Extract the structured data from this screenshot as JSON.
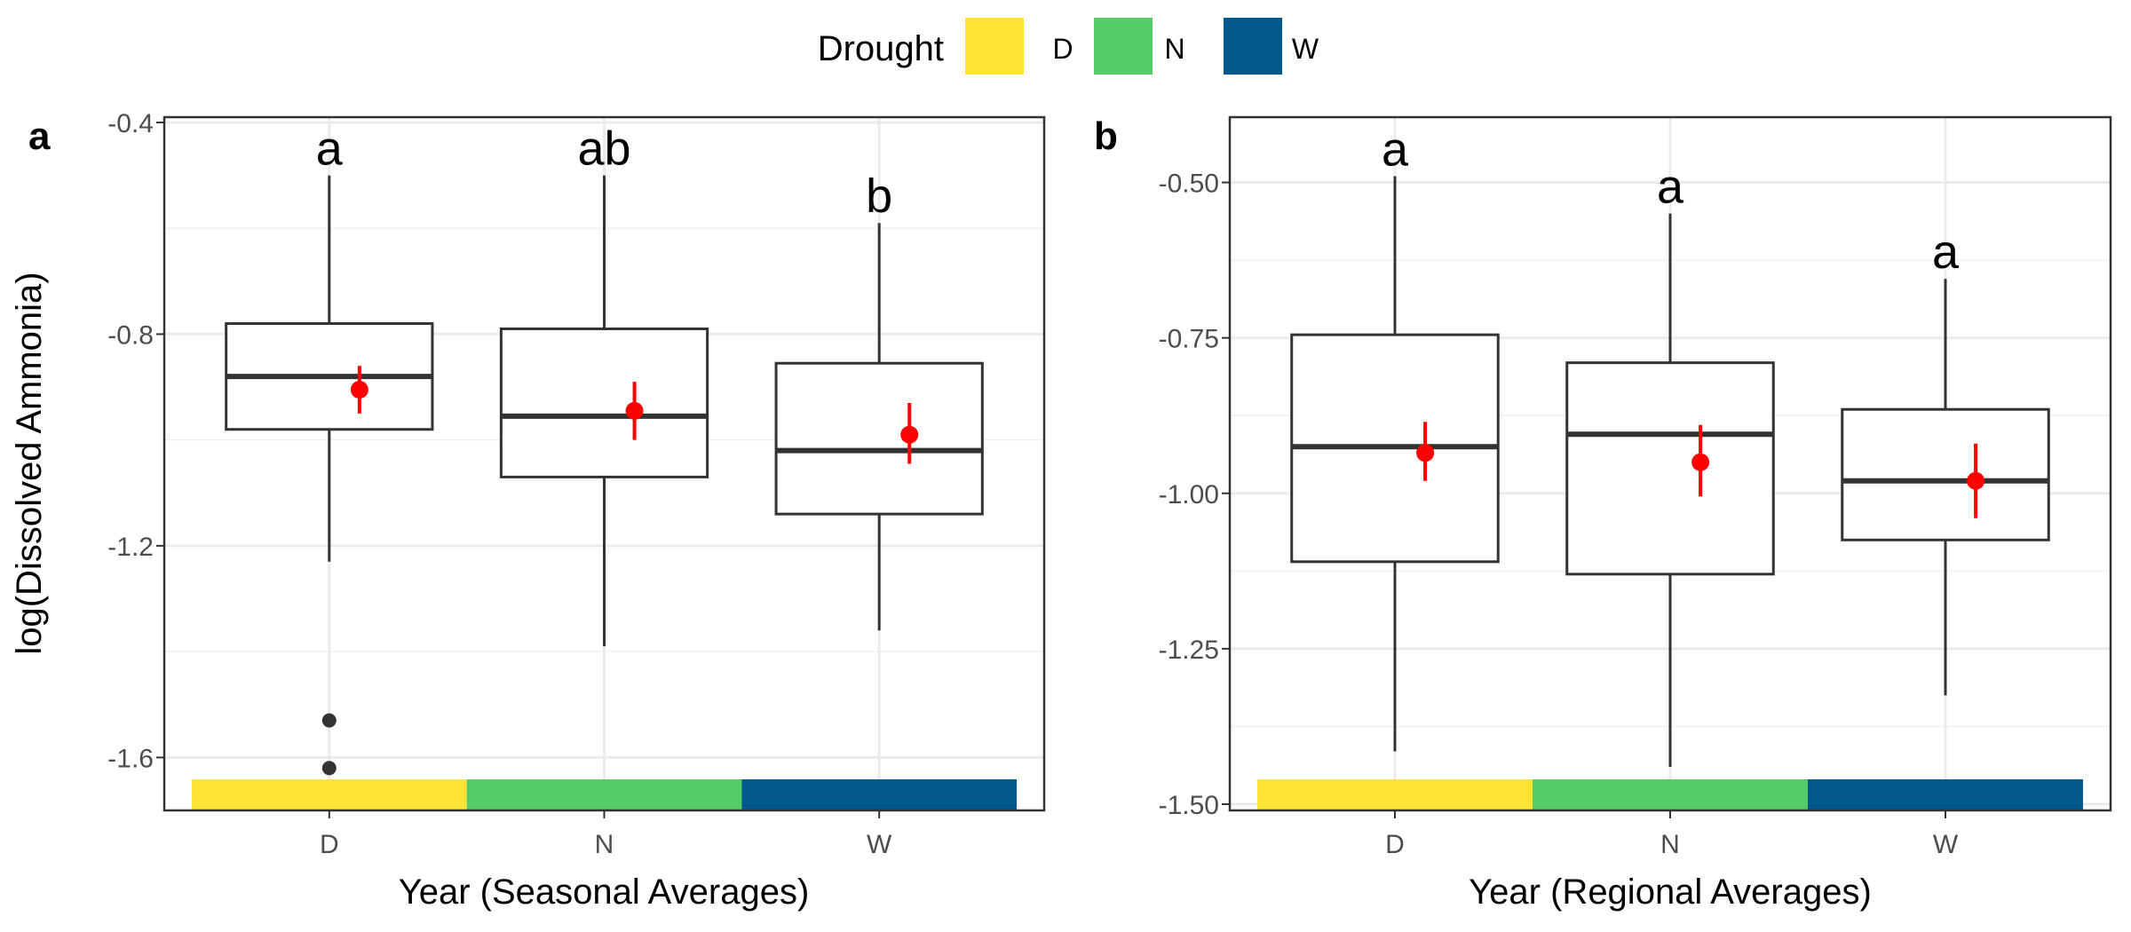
{
  "legend": {
    "title": "Drought",
    "items": [
      {
        "label": "D",
        "color": "#FDE333"
      },
      {
        "label": "N",
        "color": "#53CC67"
      },
      {
        "label": "W",
        "color": "#00588B"
      }
    ]
  },
  "chart_data": [
    {
      "type": "box",
      "panel_tag": "a",
      "xlabel": "Year (Seasonal Averages)",
      "ylabel": "log(Dissolved Ammonia)",
      "categories": [
        "D",
        "N",
        "W"
      ],
      "ylim": [
        -1.7,
        -0.39
      ],
      "yticks": [
        -0.4,
        -0.8,
        -1.2,
        -1.6
      ],
      "ytick_labels": [
        "-0.4",
        "-0.8",
        "-1.2",
        "-1.6"
      ],
      "grid": true,
      "boxes": [
        {
          "category": "D",
          "whisker_low": -1.23,
          "q1": -0.98,
          "median": -0.88,
          "q3": -0.78,
          "whisker_high": -0.5,
          "mean": -0.905,
          "ci_low": -0.95,
          "ci_high": -0.86,
          "outliers": [
            -1.53,
            -1.62
          ],
          "letter": "a"
        },
        {
          "category": "N",
          "whisker_low": -1.39,
          "q1": -1.07,
          "median": -0.955,
          "q3": -0.79,
          "whisker_high": -0.5,
          "mean": -0.945,
          "ci_low": -1.0,
          "ci_high": -0.89,
          "outliers": [],
          "letter": "ab"
        },
        {
          "category": "W",
          "whisker_low": -1.36,
          "q1": -1.14,
          "median": -1.02,
          "q3": -0.855,
          "whisker_high": -0.59,
          "mean": -0.99,
          "ci_low": -1.045,
          "ci_high": -0.93,
          "outliers": [],
          "letter": "b"
        }
      ]
    },
    {
      "type": "box",
      "panel_tag": "b",
      "xlabel": "Year (Regional Averages)",
      "ylabel": "",
      "categories": [
        "D",
        "N",
        "W"
      ],
      "ylim": [
        -1.51,
        -0.395
      ],
      "yticks": [
        -0.5,
        -0.75,
        -1.0,
        -1.25,
        -1.5
      ],
      "ytick_labels": [
        "-0.50",
        "-0.75",
        "-1.00",
        "-1.25",
        "-1.50"
      ],
      "grid": true,
      "boxes": [
        {
          "category": "D",
          "whisker_low": -1.415,
          "q1": -1.11,
          "median": -0.925,
          "q3": -0.745,
          "whisker_high": -0.49,
          "mean": -0.935,
          "ci_low": -0.98,
          "ci_high": -0.885,
          "outliers": [],
          "letter": "a"
        },
        {
          "category": "N",
          "whisker_low": -1.44,
          "q1": -1.13,
          "median": -0.905,
          "q3": -0.79,
          "whisker_high": -0.55,
          "mean": -0.95,
          "ci_low": -1.005,
          "ci_high": -0.89,
          "outliers": [],
          "letter": "a"
        },
        {
          "category": "W",
          "whisker_low": -1.325,
          "q1": -1.075,
          "median": -0.98,
          "q3": -0.865,
          "whisker_high": -0.655,
          "mean": -0.98,
          "ci_low": -1.04,
          "ci_high": -0.92,
          "outliers": [],
          "letter": "a"
        }
      ]
    }
  ]
}
